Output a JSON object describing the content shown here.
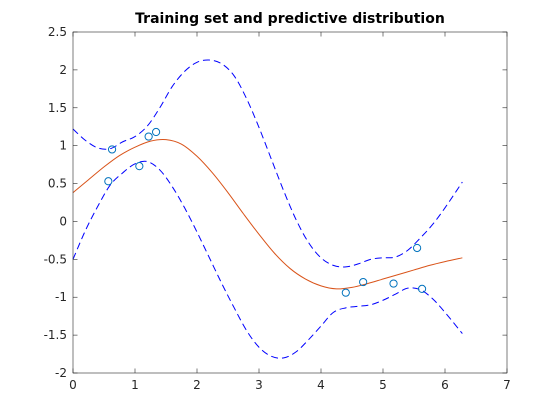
{
  "chart_data": {
    "type": "line",
    "title": "Training set and predictive distribution",
    "xlabel": "",
    "ylabel": "",
    "xlim": [
      0,
      7
    ],
    "ylim": [
      -2,
      2.5
    ],
    "x_ticks": [
      0,
      1,
      2,
      3,
      4,
      5,
      6,
      7
    ],
    "y_ticks": [
      -2,
      -1.5,
      -1,
      -0.5,
      0,
      0.5,
      1,
      1.5,
      2,
      2.5
    ],
    "x_tick_labels": [
      "0",
      "1",
      "2",
      "3",
      "4",
      "5",
      "6",
      "7"
    ],
    "y_tick_labels": [
      "-2",
      "-1.5",
      "-1",
      "-0.5",
      "0",
      "0.5",
      "1",
      "1.5",
      "2",
      "2.5"
    ],
    "grid": false,
    "box": true,
    "series": [
      {
        "role": "predictive-mean",
        "style": "solid",
        "color": "#D95319",
        "x": [
          0,
          0.25,
          0.5,
          0.75,
          1.0,
          1.25,
          1.5,
          1.75,
          2.0,
          2.25,
          2.5,
          2.75,
          3.0,
          3.25,
          3.5,
          3.75,
          4.0,
          4.25,
          4.5,
          4.75,
          5.0,
          5.25,
          5.5,
          5.75,
          6.0,
          6.28
        ],
        "y": [
          0.38,
          0.55,
          0.72,
          0.87,
          0.98,
          1.06,
          1.08,
          1.02,
          0.86,
          0.64,
          0.38,
          0.1,
          -0.17,
          -0.42,
          -0.62,
          -0.76,
          -0.85,
          -0.89,
          -0.87,
          -0.82,
          -0.76,
          -0.7,
          -0.64,
          -0.58,
          -0.53,
          -0.48
        ]
      },
      {
        "role": "upper-bound",
        "style": "dashed",
        "color": "#0000FF",
        "x": [
          0,
          0.2,
          0.4,
          0.6,
          0.8,
          1.0,
          1.2,
          1.4,
          1.6,
          1.8,
          2.0,
          2.2,
          2.4,
          2.6,
          2.8,
          3.0,
          3.2,
          3.4,
          3.6,
          3.8,
          4.0,
          4.2,
          4.4,
          4.6,
          4.8,
          5.0,
          5.2,
          5.4,
          5.6,
          5.8,
          6.0,
          6.28
        ],
        "y": [
          1.22,
          1.07,
          0.97,
          0.96,
          1.05,
          1.12,
          1.26,
          1.5,
          1.78,
          1.98,
          2.1,
          2.13,
          2.08,
          1.92,
          1.62,
          1.24,
          0.82,
          0.4,
          0.02,
          -0.28,
          -0.48,
          -0.58,
          -0.6,
          -0.56,
          -0.5,
          -0.48,
          -0.47,
          -0.38,
          -0.22,
          -0.04,
          0.18,
          0.52
        ]
      },
      {
        "role": "lower-bound",
        "style": "dashed",
        "color": "#0000FF",
        "x": [
          0,
          0.2,
          0.4,
          0.6,
          0.8,
          1.0,
          1.2,
          1.4,
          1.6,
          1.8,
          2.0,
          2.2,
          2.4,
          2.6,
          2.8,
          3.0,
          3.2,
          3.4,
          3.6,
          3.8,
          4.0,
          4.2,
          4.4,
          4.6,
          4.8,
          5.0,
          5.2,
          5.4,
          5.6,
          5.8,
          6.0,
          6.28
        ],
        "y": [
          -0.5,
          -0.12,
          0.2,
          0.48,
          0.64,
          0.76,
          0.79,
          0.68,
          0.46,
          0.18,
          -0.14,
          -0.48,
          -0.82,
          -1.14,
          -1.44,
          -1.66,
          -1.78,
          -1.8,
          -1.72,
          -1.56,
          -1.38,
          -1.2,
          -1.14,
          -1.12,
          -1.1,
          -1.04,
          -0.96,
          -0.88,
          -0.9,
          -1.02,
          -1.2,
          -1.48
        ]
      }
    ],
    "points": {
      "role": "training-set",
      "marker": "circle",
      "color": "#0072BD",
      "x": [
        0.57,
        0.63,
        1.07,
        1.22,
        1.34,
        4.4,
        4.68,
        5.17,
        5.55,
        5.63
      ],
      "y": [
        0.53,
        0.95,
        0.73,
        1.12,
        1.18,
        -0.94,
        -0.8,
        -0.82,
        -0.35,
        -0.89
      ]
    }
  }
}
